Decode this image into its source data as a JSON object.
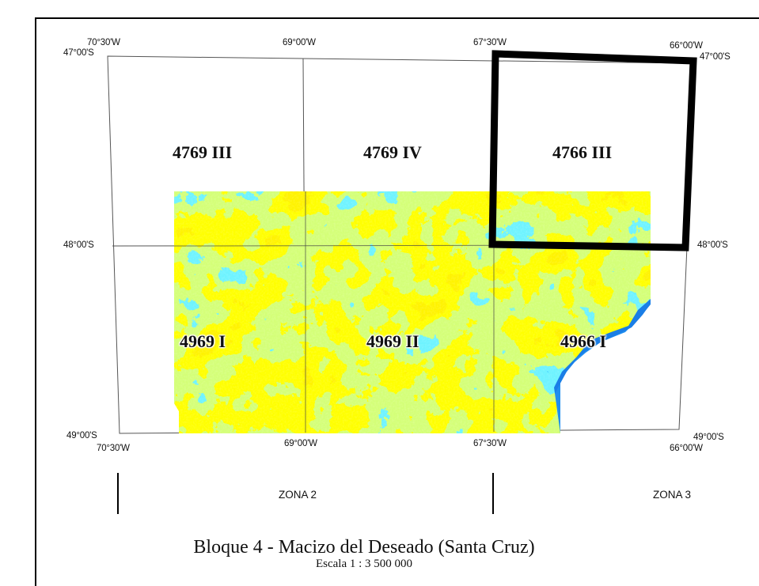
{
  "map": {
    "top_longitudes": [
      "70°30'W",
      "69°00'W",
      "67°30'W",
      "66°00'W"
    ],
    "bottom_longitudes": [
      "70°30'W",
      "69°00'W",
      "67°30'W",
      "66°00'W"
    ],
    "left_latitudes": [
      "47°00'S",
      "48°00'S",
      "49°00'S"
    ],
    "right_latitudes": [
      "47°00'S",
      "48°00'S",
      "49°00'S"
    ],
    "sheets": {
      "nw": "4769 III",
      "nc": "4769 IV",
      "ne": "4766 III",
      "sw": "4969 I",
      "sc": "4969 II",
      "se": "4966 I"
    },
    "highlighted_sheet": "4766 III",
    "highlight_color": "#000000",
    "palette": [
      "#ff00ff",
      "#ff2020",
      "#ffff00",
      "#a8ff30",
      "#20e8ff",
      "#0aa0ff",
      "#1e88f0"
    ],
    "sea_color": "#1f8ef0"
  },
  "zones": {
    "zone2_label": "ZONA 2",
    "zone3_label": "ZONA 3"
  },
  "title": "Bloque 4 - Macizo del Deseado (Santa Cruz)",
  "scale": "Escala 1 : 3 500 000"
}
